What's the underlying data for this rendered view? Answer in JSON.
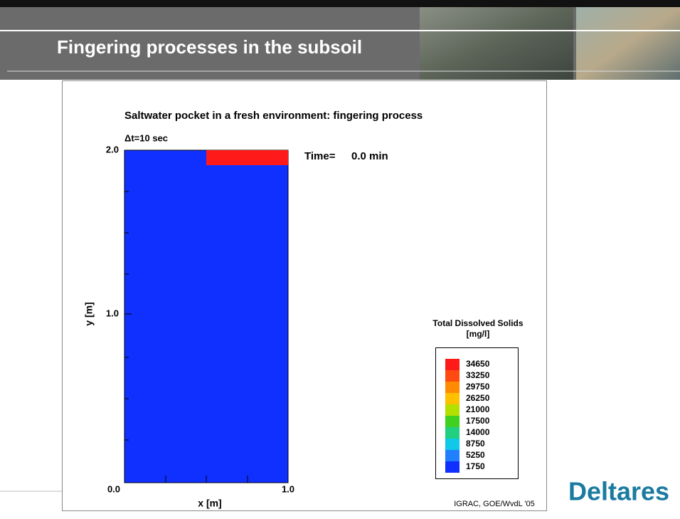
{
  "header": {
    "title": "Fingering processes in the subsoil"
  },
  "figure": {
    "title": "Saltwater pocket in a fresh environment: fingering process",
    "timestep": "Δt=10 sec",
    "time_label": "Time=",
    "time_value": "0.0 min",
    "y_axis_label": "y [m]",
    "x_axis_label": "x [m]",
    "y_ticks": [
      "2.0",
      "1.0",
      "0.0"
    ],
    "x_ticks": [
      "1.0"
    ],
    "legend": {
      "title": "Total Dissolved Solids",
      "unit": "[mg/l]",
      "levels": [
        {
          "value": 34650,
          "color": "#ff1a1a"
        },
        {
          "value": 33250,
          "color": "#ff4a10"
        },
        {
          "value": 29750,
          "color": "#ff8c00"
        },
        {
          "value": 26250,
          "color": "#ffc000"
        },
        {
          "value": 21000,
          "color": "#b4e000"
        },
        {
          "value": 17500,
          "color": "#40d020"
        },
        {
          "value": 14000,
          "color": "#20d080"
        },
        {
          "value": 8750,
          "color": "#10c8e8"
        },
        {
          "value": 5250,
          "color": "#2080ff"
        },
        {
          "value": 1750,
          "color": "#1030ff"
        }
      ]
    },
    "credit": "IGRAC, GOE/WvdL '05"
  },
  "logo": "Deltares"
}
